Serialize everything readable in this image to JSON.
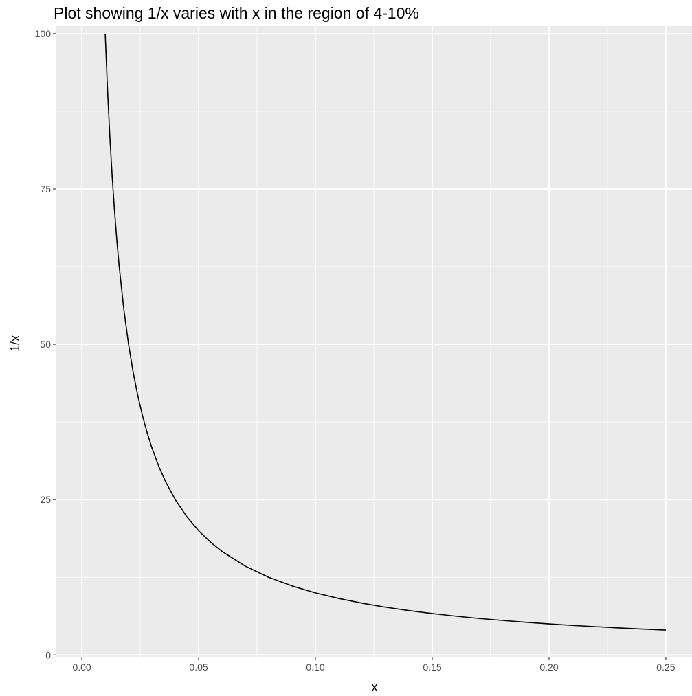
{
  "chart_data": {
    "type": "line",
    "title": "Plot showing 1/x varies with x in the region of 4-10%",
    "xlabel": "x",
    "ylabel": "1/x",
    "xlim": [
      -0.0112,
      0.2612
    ],
    "ylim": [
      -0.3,
      101.2
    ],
    "x_ticks": [
      0.0,
      0.05,
      0.1,
      0.15,
      0.2,
      0.25
    ],
    "x_tick_labels": [
      "0.00",
      "0.05",
      "0.10",
      "0.15",
      "0.20",
      "0.25"
    ],
    "y_ticks": [
      0,
      25,
      50,
      75,
      100
    ],
    "y_tick_labels": [
      "0",
      "25",
      "50",
      "75",
      "100"
    ],
    "grid": true,
    "background": "#ebebeb",
    "grid_color": "#ffffff",
    "line_color": "#000000",
    "series": [
      {
        "x": [
          0.01,
          0.011,
          0.012,
          0.013,
          0.014,
          0.015,
          0.016,
          0.018,
          0.02,
          0.022,
          0.024,
          0.026,
          0.028,
          0.03,
          0.033,
          0.036,
          0.04,
          0.045,
          0.05,
          0.055,
          0.06,
          0.07,
          0.08,
          0.09,
          0.1,
          0.11,
          0.12,
          0.13,
          0.14,
          0.15,
          0.16,
          0.17,
          0.18,
          0.19,
          0.2,
          0.21,
          0.22,
          0.23,
          0.24,
          0.25
        ],
        "y": [
          100,
          90.91,
          83.33,
          76.92,
          71.43,
          66.67,
          62.5,
          55.56,
          50,
          45.45,
          41.67,
          38.46,
          35.71,
          33.33,
          30.3,
          27.78,
          25,
          22.22,
          20,
          18.18,
          16.67,
          14.29,
          12.5,
          11.11,
          10,
          9.09,
          8.33,
          7.69,
          7.14,
          6.67,
          6.25,
          5.88,
          5.56,
          5.26,
          5,
          4.76,
          4.55,
          4.35,
          4.17,
          4
        ]
      }
    ]
  }
}
